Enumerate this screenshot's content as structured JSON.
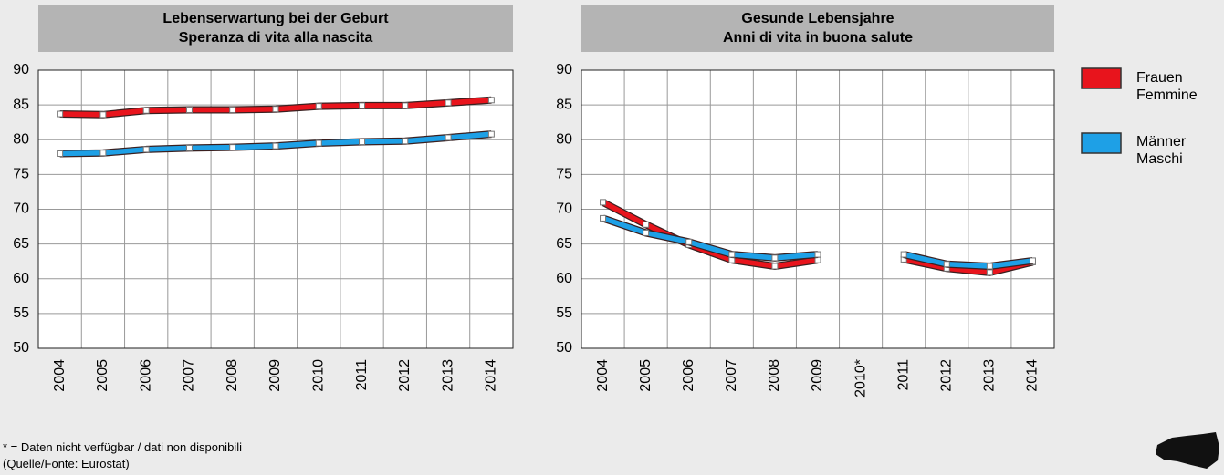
{
  "chart_data": [
    {
      "type": "line",
      "title": "Lebenserwartung bei der Geburt",
      "subtitle": "Speranza di vita alla nascita",
      "categories": [
        "2004",
        "2005",
        "2006",
        "2007",
        "2008",
        "2009",
        "2010",
        "2011",
        "2012",
        "2013",
        "2014"
      ],
      "series": [
        {
          "color": "#e8141c",
          "values": [
            83.7,
            83.6,
            84.2,
            84.3,
            84.3,
            84.4,
            84.8,
            84.9,
            84.9,
            85.3,
            85.7
          ]
        },
        {
          "color": "#1ea0e6",
          "values": [
            78.0,
            78.1,
            78.6,
            78.8,
            78.9,
            79.1,
            79.5,
            79.7,
            79.8,
            80.3,
            80.8
          ]
        }
      ],
      "ylim": [
        50,
        90
      ],
      "yticks": [
        50,
        55,
        60,
        65,
        70,
        75,
        80,
        85,
        90
      ],
      "grid": true
    },
    {
      "type": "line",
      "title": "Gesunde Lebensjahre",
      "subtitle": "Anni di vita in buona salute",
      "categories": [
        "2004",
        "2005",
        "2006",
        "2007",
        "2008",
        "2009",
        "2010*",
        "2011",
        "2012",
        "2013",
        "2014"
      ],
      "series": [
        {
          "name": "Frauen\nFemmine",
          "color": "#e8141c",
          "values": [
            71.0,
            67.8,
            64.9,
            62.7,
            61.8,
            62.7,
            null,
            62.8,
            61.5,
            60.9,
            62.4
          ]
        },
        {
          "name": "Männer\nMaschi",
          "color": "#1ea0e6",
          "values": [
            68.7,
            66.6,
            65.3,
            63.5,
            63.0,
            63.5,
            null,
            63.5,
            62.1,
            61.8,
            62.6
          ]
        }
      ],
      "ylim": [
        50,
        90
      ],
      "yticks": [
        50,
        55,
        60,
        65,
        70,
        75,
        80,
        85,
        90
      ],
      "grid": true
    }
  ],
  "footnote": "* = Daten nicht verfügbar / dati non disponibili",
  "source": "(Quelle/Fonte: Eurostat)"
}
